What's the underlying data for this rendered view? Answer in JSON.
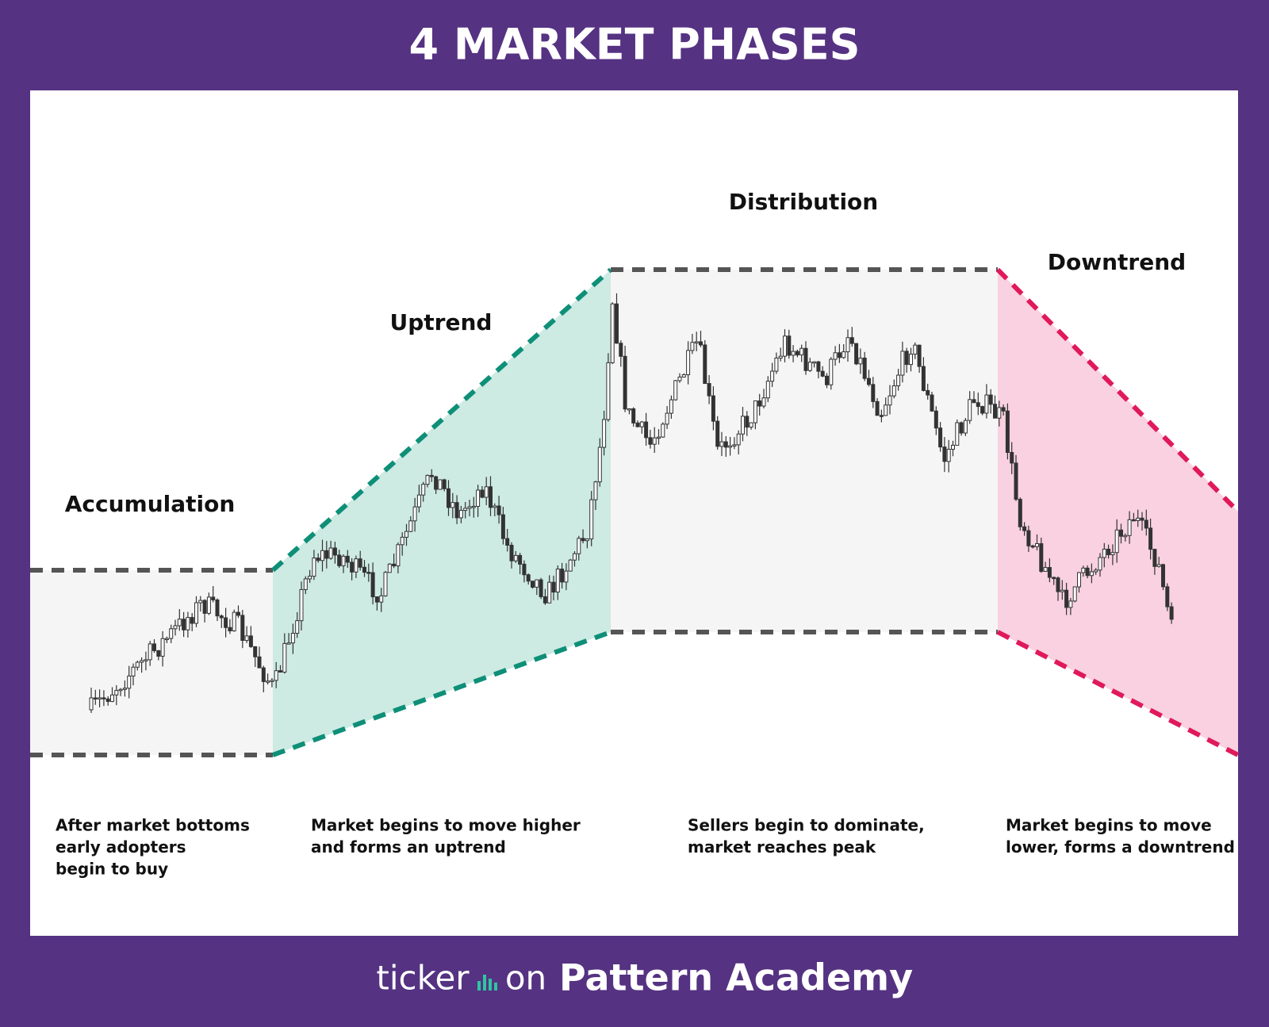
{
  "header": {
    "title": "4 MARKET PHASES"
  },
  "phases": [
    {
      "name": "Accumulation",
      "description": [
        "After market bottoms",
        "early adopters",
        "begin to buy"
      ]
    },
    {
      "name": "Uptrend",
      "description": [
        "Market begins to move higher",
        "and forms an uptrend"
      ]
    },
    {
      "name": "Distribution",
      "description": [
        "Sellers begin to dominate,",
        "market reaches peak"
      ]
    },
    {
      "name": "Downtrend",
      "description": [
        "Market begins to move",
        "lower, forms a downtrend"
      ]
    }
  ],
  "footer": {
    "brand_left": "ticker",
    "brand_right": "on",
    "title": "Pattern Academy"
  }
}
